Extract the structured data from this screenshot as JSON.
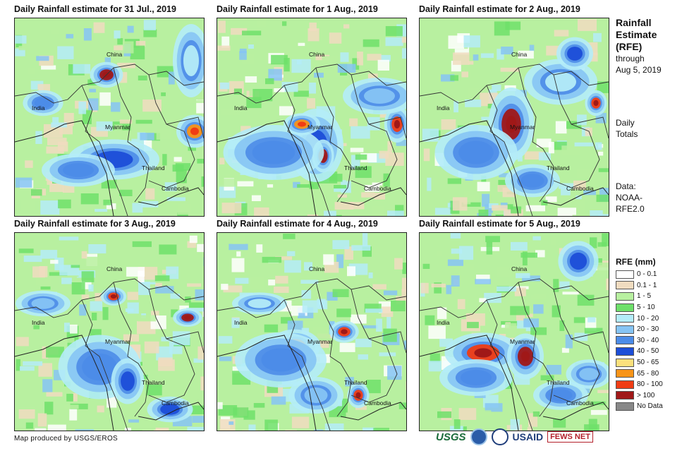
{
  "panels": [
    {
      "title": "Daily Rainfall estimate for 31 Jul., 2019",
      "labels": {
        "china": "China",
        "india": "India",
        "myanmar": "Myanmar",
        "thailand": "Thailand",
        "cambodia": "Cambodia"
      }
    },
    {
      "title": "Daily Rainfall estimate for 1 Aug., 2019",
      "labels": {
        "china": "China",
        "india": "India",
        "myanmar": "Myanmar",
        "thailand": "Thailand",
        "cambodia": "Cambodia"
      }
    },
    {
      "title": "Daily Rainfall estimate for 2 Aug., 2019",
      "labels": {
        "china": "China",
        "india": "India",
        "myanmar": "Myanmar",
        "thailand": "Thailand",
        "cambodia": "Cambodia"
      }
    },
    {
      "title": "Daily Rainfall estimate for 3 Aug., 2019",
      "labels": {
        "china": "China",
        "india": "India",
        "myanmar": "Myanmar",
        "thailand": "Thailand",
        "cambodia": "Cambodia"
      }
    },
    {
      "title": "Daily Rainfall estimate for 4 Aug., 2019",
      "labels": {
        "china": "China",
        "india": "India",
        "myanmar": "Myanmar",
        "thailand": "Thailand",
        "cambodia": "Cambodia"
      }
    },
    {
      "title": "Daily Rainfall estimate for 5 Aug., 2019",
      "labels": {
        "china": "China",
        "india": "India",
        "myanmar": "Myanmar",
        "thailand": "Thailand",
        "cambodia": "Cambodia"
      }
    }
  ],
  "side": {
    "title_lines": [
      "Rainfall",
      "Estimate",
      "(RFE)"
    ],
    "through": "through",
    "date": "Aug 5, 2019",
    "daily": "Daily",
    "totals": "Totals",
    "data_label": "Data:",
    "data_source_1": "NOAA-",
    "data_source_2": "RFE2.0"
  },
  "legend": {
    "title": "RFE (mm)",
    "items": [
      {
        "label": "0 - 0.1",
        "color": "#ffffff"
      },
      {
        "label": "0.1 - 1",
        "color": "#f0dcc0"
      },
      {
        "label": "1 - 5",
        "color": "#b8f0a0"
      },
      {
        "label": "5 - 10",
        "color": "#6ee06a"
      },
      {
        "label": "10 - 20",
        "color": "#b4ecf8"
      },
      {
        "label": "20 - 30",
        "color": "#86c4f4"
      },
      {
        "label": "30 - 40",
        "color": "#4c8ce8"
      },
      {
        "label": "40 - 50",
        "color": "#1c4ed8"
      },
      {
        "label": "50 - 65",
        "color": "#fce07c"
      },
      {
        "label": "65 - 80",
        "color": "#f89418"
      },
      {
        "label": "80 - 100",
        "color": "#f03c14"
      },
      {
        "label": "> 100",
        "color": "#a01818"
      },
      {
        "label": "No Data",
        "color": "#888888"
      }
    ]
  },
  "credit": "Map produced by USGS/EROS",
  "logos": {
    "usgs": "USGS",
    "usaid": "USAID",
    "fews": "FEWS NET"
  }
}
